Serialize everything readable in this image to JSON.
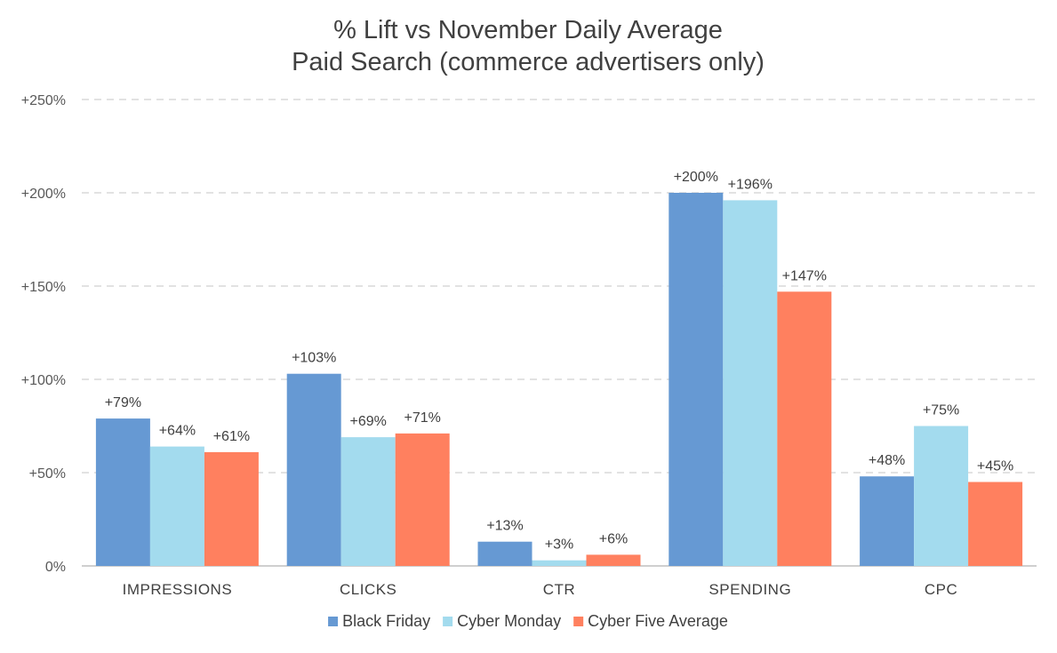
{
  "chart_data": {
    "type": "bar",
    "title": "% Lift vs November Daily Average",
    "subtitle": "Paid Search (commerce advertisers only)",
    "categories": [
      "IMPRESSIONS",
      "CLICKS",
      "CTR",
      "SPENDING",
      "CPC"
    ],
    "series": [
      {
        "name": "Black Friday",
        "color": "#6699d3",
        "values": [
          79,
          103,
          13,
          200,
          48
        ],
        "labels": [
          "+79%",
          "+103%",
          "+13%",
          "+200%",
          "+48%"
        ]
      },
      {
        "name": "Cyber Monday",
        "color": "#a3dbee",
        "values": [
          64,
          69,
          3,
          196,
          75
        ],
        "labels": [
          "+64%",
          "+69%",
          "+3%",
          "+196%",
          "+75%"
        ]
      },
      {
        "name": "Cyber Five Average",
        "color": "#ff805f",
        "values": [
          61,
          71,
          6,
          147,
          45
        ],
        "labels": [
          "+61%",
          "+71%",
          "+6%",
          "+147%",
          "+45%"
        ]
      }
    ],
    "ylim": [
      0,
      250
    ],
    "yticks": [
      0,
      50,
      100,
      150,
      200,
      250
    ],
    "ytick_labels": [
      "0%",
      "+50%",
      "+100%",
      "+150%",
      "+200%",
      "+250%"
    ],
    "grid": true,
    "legend": "bottom-center"
  }
}
